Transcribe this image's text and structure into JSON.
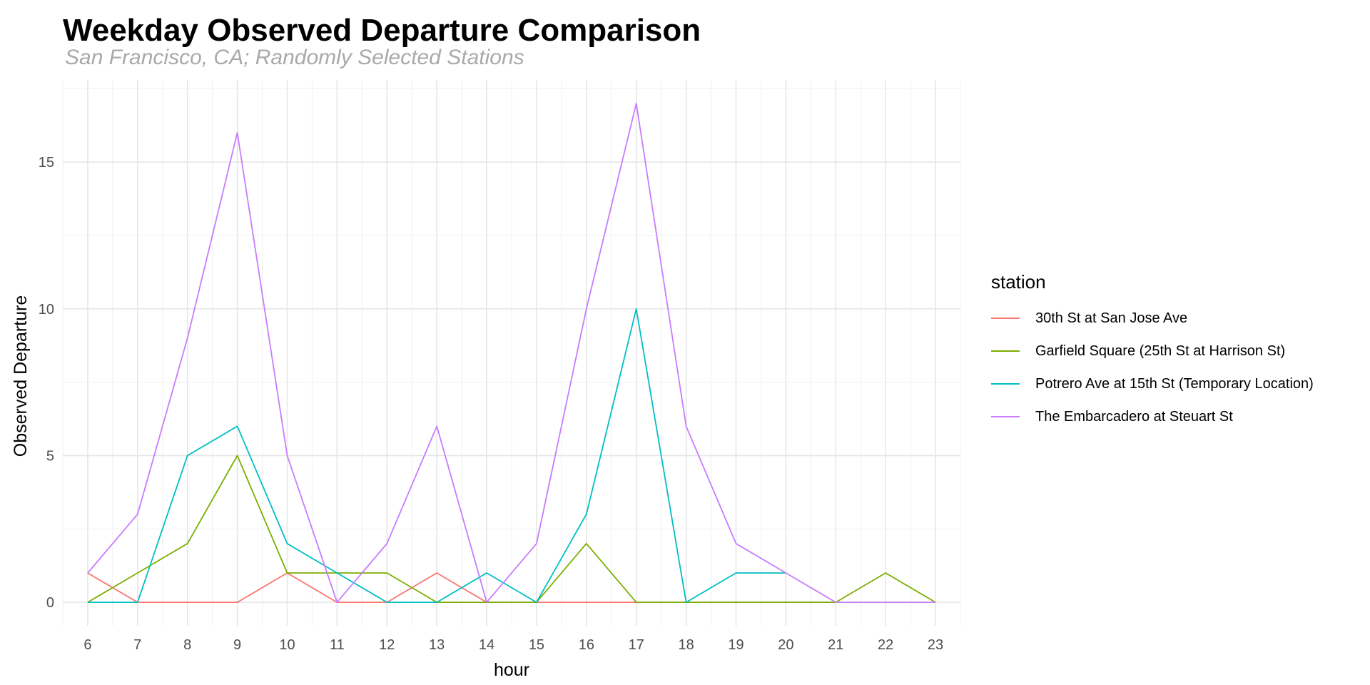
{
  "chart_data": {
    "type": "line",
    "title": "Weekday Observed Departure Comparison",
    "subtitle": "San Francisco, CA; Randomly Selected Stations",
    "xlabel": "hour",
    "ylabel": "Observed Departure",
    "x": [
      6,
      7,
      8,
      9,
      10,
      11,
      12,
      13,
      14,
      15,
      16,
      17,
      18,
      19,
      20,
      21,
      22,
      23
    ],
    "xlim": [
      5.5,
      23.5
    ],
    "ylim": [
      -0.8,
      17.8
    ],
    "yticks": [
      0,
      5,
      10,
      15
    ],
    "grid": true,
    "legend_position": "right",
    "legend_title": "station",
    "series": [
      {
        "name": "30th St at San Jose Ave",
        "color": "#F8766D",
        "points": [
          [
            6,
            1
          ],
          [
            7,
            0
          ],
          [
            8,
            0
          ],
          [
            9,
            0
          ],
          [
            10,
            1
          ],
          [
            11,
            0
          ],
          [
            12,
            0
          ],
          [
            13,
            1
          ],
          [
            14,
            0
          ],
          [
            15,
            0
          ],
          [
            16,
            0
          ],
          [
            17,
            0
          ],
          [
            18,
            0
          ],
          [
            19,
            0
          ],
          [
            20,
            0
          ],
          [
            21,
            0
          ]
        ]
      },
      {
        "name": "Garfield Square (25th St at Harrison St)",
        "color": "#7CAE00",
        "points": [
          [
            6,
            0
          ],
          [
            7,
            1
          ],
          [
            8,
            2
          ],
          [
            9,
            5
          ],
          [
            10,
            1
          ],
          [
            11,
            1
          ],
          [
            12,
            1
          ],
          [
            13,
            0
          ],
          [
            14,
            0
          ],
          [
            15,
            0
          ],
          [
            16,
            2
          ],
          [
            17,
            0
          ],
          [
            18,
            0
          ],
          [
            21,
            0
          ],
          [
            22,
            1
          ],
          [
            23,
            0
          ]
        ]
      },
      {
        "name": "Potrero Ave at 15th St (Temporary Location)",
        "color": "#00BFC4",
        "points": [
          [
            6,
            0
          ],
          [
            7,
            0
          ],
          [
            8,
            5
          ],
          [
            9,
            6
          ],
          [
            10,
            2
          ],
          [
            11,
            1
          ],
          [
            12,
            0
          ],
          [
            13,
            0
          ],
          [
            14,
            1
          ],
          [
            15,
            0
          ],
          [
            16,
            3
          ],
          [
            17,
            10
          ],
          [
            18,
            0
          ],
          [
            19,
            1
          ],
          [
            20,
            1
          ]
        ]
      },
      {
        "name": "The Embarcadero at Steuart St",
        "color": "#C77CFF",
        "points": [
          [
            6,
            1
          ],
          [
            7,
            3
          ],
          [
            8,
            9
          ],
          [
            9,
            16
          ],
          [
            10,
            5
          ],
          [
            11,
            0
          ],
          [
            12,
            2
          ],
          [
            13,
            6
          ],
          [
            14,
            0
          ],
          [
            15,
            2
          ],
          [
            16,
            10
          ],
          [
            17,
            17
          ],
          [
            18,
            6
          ],
          [
            19,
            2
          ],
          [
            20,
            1
          ],
          [
            21,
            0
          ],
          [
            22,
            0
          ],
          [
            23,
            0
          ]
        ]
      }
    ]
  }
}
